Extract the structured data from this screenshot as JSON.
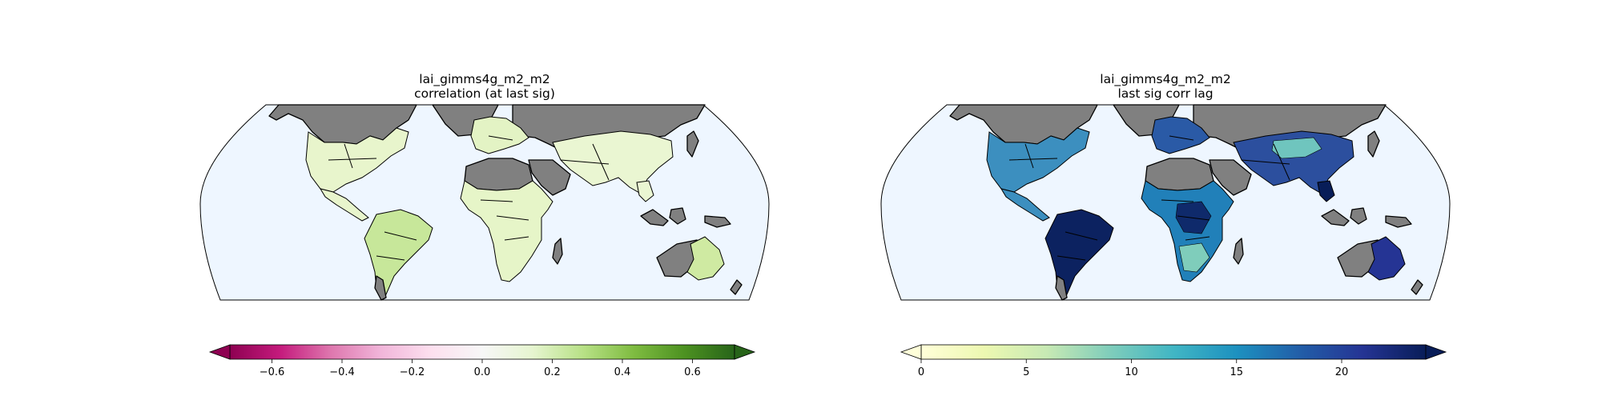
{
  "panels": [
    {
      "title_line1": "lai_gimms4g_m2_m2",
      "title_line2": "correlation (at last sig)",
      "colormap": "PiYG",
      "colorbar": {
        "range": [
          -0.72,
          0.72
        ],
        "extend": "both",
        "ticks": [
          {
            "value": -0.6,
            "label": "−0.6"
          },
          {
            "value": -0.4,
            "label": "−0.4"
          },
          {
            "value": -0.2,
            "label": "−0.2"
          },
          {
            "value": 0.0,
            "label": "0.0"
          },
          {
            "value": 0.2,
            "label": "0.2"
          },
          {
            "value": 0.4,
            "label": "0.4"
          },
          {
            "value": 0.6,
            "label": "0.6"
          }
        ],
        "stops": [
          "#8e0152",
          "#c51b7d",
          "#de77ae",
          "#f1b6da",
          "#fde0ef",
          "#f7f7f7",
          "#e6f5d0",
          "#b8e186",
          "#7fbc41",
          "#4d9221",
          "#276419"
        ]
      },
      "region_colors": {
        "north_america": "#e8f5cc",
        "south_america": "#c7e79a",
        "africa": "#e6f5c8",
        "europe": "#e3f3c4",
        "asia": "#eaf6d2",
        "australia": "#cfeaa2"
      }
    },
    {
      "title_line1": "lai_gimms4g_m2_m2",
      "title_line2": "last sig corr lag",
      "colormap": "YlGnBu",
      "colorbar": {
        "range": [
          0,
          24
        ],
        "extend": "both",
        "ticks": [
          {
            "value": 0,
            "label": "0"
          },
          {
            "value": 5,
            "label": "5"
          },
          {
            "value": 10,
            "label": "10"
          },
          {
            "value": 15,
            "label": "15"
          },
          {
            "value": 20,
            "label": "20"
          }
        ],
        "stops": [
          "#ffffd9",
          "#edf8b1",
          "#c7e9b4",
          "#7fcdbb",
          "#41b6c4",
          "#1d91c0",
          "#225ea8",
          "#253494",
          "#081d58"
        ]
      },
      "region_colors": {
        "north_america": "#3c8fbf",
        "south_america": "#0c2260",
        "africa": "#2180b9",
        "europe": "#2a5aa6",
        "asia": "#2c4f9e",
        "australia": "#253494"
      }
    }
  ],
  "ocean_color": "#eef6ff",
  "masked_land_color": "#808080"
}
